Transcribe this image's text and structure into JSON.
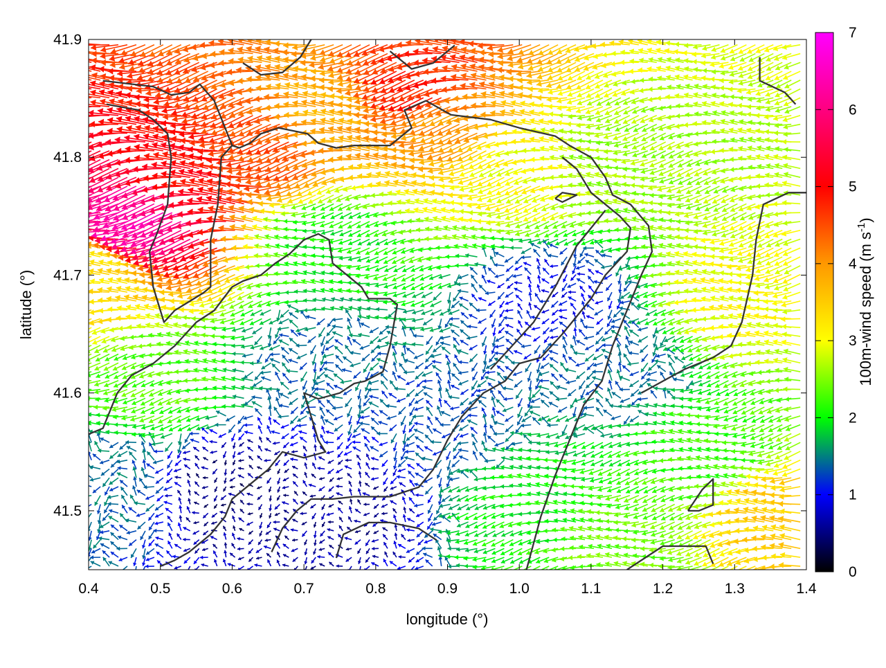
{
  "chart_data": {
    "type": "vector-field",
    "xlabel": "longitude (°)",
    "ylabel": "latitude (°)",
    "xlim": [
      0.4,
      1.4
    ],
    "ylim": [
      41.45,
      41.9
    ],
    "xticks": [
      0.4,
      0.5,
      0.6,
      0.7,
      0.8,
      0.9,
      1.0,
      1.1,
      1.2,
      1.3,
      1.4
    ],
    "yticks": [
      41.5,
      41.6,
      41.7,
      41.8,
      41.9
    ],
    "xtick_labels": [
      "0.4",
      "0.5",
      "0.6",
      "0.7",
      "0.8",
      "0.9",
      "1.0",
      "1.1",
      "1.2",
      "1.3",
      "1.4"
    ],
    "ytick_labels": [
      "41.5",
      "41.6",
      "41.7",
      "41.8",
      "41.9"
    ],
    "colorbar": {
      "label_main": "100m-wind speed (m s",
      "label_sup": "-1",
      "label_end": ")",
      "range": [
        0,
        7
      ],
      "ticks": [
        "0",
        "1",
        "2",
        "3",
        "4",
        "5",
        "6",
        "7"
      ],
      "colors": [
        "#000000",
        "#0000ff",
        "#00ff00",
        "#ffff00",
        "#ff9900",
        "#ff0000",
        "#ff00ff"
      ]
    },
    "wind_direction": "mostly westward",
    "speed_regions": [
      {
        "lon": 0.48,
        "lat": 41.75,
        "speed": 6.3
      },
      {
        "lon": 0.55,
        "lat": 41.79,
        "speed": 5.0
      },
      {
        "lon": 0.65,
        "lat": 41.81,
        "speed": 4.5
      },
      {
        "lon": 0.87,
        "lat": 41.86,
        "speed": 4.8
      },
      {
        "lon": 0.75,
        "lat": 41.84,
        "speed": 3.8
      },
      {
        "lon": 0.9,
        "lat": 41.83,
        "speed": 4.0
      },
      {
        "lon": 1.0,
        "lat": 41.79,
        "speed": 3.0
      },
      {
        "lon": 1.15,
        "lat": 41.8,
        "speed": 2.6
      },
      {
        "lon": 1.32,
        "lat": 41.68,
        "speed": 3.0
      },
      {
        "lon": 1.38,
        "lat": 41.5,
        "speed": 3.5
      },
      {
        "lon": 1.13,
        "lat": 41.47,
        "speed": 2.4
      },
      {
        "lon": 1.28,
        "lat": 41.55,
        "speed": 2.2
      },
      {
        "lon": 0.42,
        "lat": 41.7,
        "speed": 3.3
      },
      {
        "lon": 0.5,
        "lat": 41.61,
        "speed": 2.3
      },
      {
        "lon": 0.75,
        "lat": 41.73,
        "speed": 2.0
      },
      {
        "lon": 0.72,
        "lat": 41.63,
        "speed": 1.4
      },
      {
        "lon": 0.6,
        "lat": 41.52,
        "speed": 0.5
      },
      {
        "lon": 0.75,
        "lat": 41.5,
        "speed": 0.6
      },
      {
        "lon": 0.9,
        "lat": 41.58,
        "speed": 1.3
      },
      {
        "lon": 1.05,
        "lat": 41.68,
        "speed": 1.0
      },
      {
        "lon": 1.15,
        "lat": 41.62,
        "speed": 1.4
      },
      {
        "lon": 1.03,
        "lat": 41.5,
        "speed": 2.0
      },
      {
        "lon": 0.43,
        "lat": 41.52,
        "speed": 1.4
      }
    ],
    "contours": [
      [
        [
          0.42,
          41.865
        ],
        [
          0.49,
          41.86
        ],
        [
          0.515,
          41.853
        ],
        [
          0.54,
          41.855
        ],
        [
          0.555,
          41.862
        ],
        [
          0.575,
          41.848
        ],
        [
          0.6,
          41.81
        ],
        [
          0.61,
          41.808
        ],
        [
          0.625,
          41.812
        ],
        [
          0.64,
          41.82
        ],
        [
          0.665,
          41.825
        ],
        [
          0.705,
          41.82
        ],
        [
          0.72,
          41.812
        ],
        [
          0.745,
          41.808
        ],
        [
          0.77,
          41.81
        ],
        [
          0.82,
          41.81
        ],
        [
          0.85,
          41.825
        ],
        [
          0.84,
          41.84
        ],
        [
          0.87,
          41.848
        ],
        [
          0.905,
          41.836
        ],
        [
          0.96,
          41.832
        ],
        [
          1.0,
          41.825
        ],
        [
          1.05,
          41.818
        ],
        [
          1.07,
          41.81
        ],
        [
          1.1,
          41.8
        ],
        [
          1.12,
          41.783
        ],
        [
          1.13,
          41.768
        ],
        [
          1.155,
          41.76
        ],
        [
          1.18,
          41.742
        ],
        [
          1.185,
          41.72
        ],
        [
          1.17,
          41.7
        ],
        [
          1.13,
          41.64
        ],
        [
          1.115,
          41.61
        ],
        [
          1.09,
          41.59
        ],
        [
          1.07,
          41.56
        ],
        [
          1.05,
          41.53
        ],
        [
          1.03,
          41.495
        ],
        [
          1.01,
          41.45
        ]
      ],
      [
        [
          0.425,
          41.845
        ],
        [
          0.47,
          41.84
        ],
        [
          0.49,
          41.832
        ],
        [
          0.51,
          41.82
        ],
        [
          0.515,
          41.8
        ],
        [
          0.51,
          41.76
        ],
        [
          0.495,
          41.735
        ],
        [
          0.485,
          41.72
        ],
        [
          0.49,
          41.69
        ],
        [
          0.505,
          41.66
        ],
        [
          0.52,
          41.67
        ],
        [
          0.56,
          41.685
        ],
        [
          0.57,
          41.69
        ],
        [
          0.57,
          41.73
        ],
        [
          0.58,
          41.76
        ],
        [
          0.585,
          41.8
        ],
        [
          0.6,
          41.81
        ]
      ],
      [
        [
          0.4,
          41.565
        ],
        [
          0.42,
          41.57
        ],
        [
          0.44,
          41.6
        ],
        [
          0.46,
          41.615
        ],
        [
          0.49,
          41.625
        ],
        [
          0.52,
          41.64
        ],
        [
          0.55,
          41.66
        ],
        [
          0.575,
          41.67
        ],
        [
          0.6,
          41.69
        ],
        [
          0.615,
          41.695
        ],
        [
          0.64,
          41.7
        ],
        [
          0.66,
          41.71
        ],
        [
          0.68,
          41.718
        ],
        [
          0.7,
          41.73
        ],
        [
          0.72,
          41.735
        ],
        [
          0.735,
          41.73
        ],
        [
          0.74,
          41.71
        ],
        [
          0.76,
          41.7
        ],
        [
          0.78,
          41.69
        ],
        [
          0.79,
          41.68
        ],
        [
          0.82,
          41.68
        ],
        [
          0.83,
          41.675
        ],
        [
          0.82,
          41.64
        ],
        [
          0.81,
          41.618
        ],
        [
          0.785,
          41.61
        ],
        [
          0.77,
          41.608
        ],
        [
          0.75,
          41.6
        ],
        [
          0.72,
          41.595
        ],
        [
          0.7,
          41.6
        ],
        [
          0.71,
          41.58
        ],
        [
          0.72,
          41.56
        ],
        [
          0.73,
          41.55
        ],
        [
          0.7,
          41.545
        ],
        [
          0.67,
          41.55
        ],
        [
          0.65,
          41.535
        ],
        [
          0.62,
          41.52
        ],
        [
          0.6,
          41.51
        ],
        [
          0.59,
          41.495
        ],
        [
          0.57,
          41.48
        ],
        [
          0.54,
          41.465
        ],
        [
          0.52,
          41.458
        ],
        [
          0.5,
          41.453
        ]
      ],
      [
        [
          0.655,
          41.465
        ],
        [
          0.67,
          41.485
        ],
        [
          0.69,
          41.5
        ],
        [
          0.71,
          41.51
        ],
        [
          0.74,
          41.51
        ],
        [
          0.77,
          41.512
        ],
        [
          0.82,
          41.512
        ],
        [
          0.86,
          41.52
        ],
        [
          0.88,
          41.535
        ],
        [
          0.9,
          41.56
        ],
        [
          0.92,
          41.58
        ],
        [
          0.95,
          41.6
        ],
        [
          0.98,
          41.61
        ],
        [
          1.0,
          41.625
        ],
        [
          1.03,
          41.63
        ],
        [
          1.06,
          41.65
        ],
        [
          1.08,
          41.665
        ],
        [
          1.1,
          41.68
        ],
        [
          1.12,
          41.7
        ],
        [
          1.15,
          41.72
        ],
        [
          1.155,
          41.74
        ],
        [
          1.14,
          41.75
        ],
        [
          1.1,
          41.77
        ],
        [
          1.08,
          41.79
        ],
        [
          1.06,
          41.8
        ]
      ],
      [
        [
          0.745,
          41.46
        ],
        [
          0.755,
          41.48
        ],
        [
          0.79,
          41.49
        ],
        [
          0.82,
          41.49
        ],
        [
          0.86,
          41.485
        ],
        [
          0.885,
          41.475
        ]
      ],
      [
        [
          1.15,
          41.45
        ],
        [
          1.2,
          41.47
        ],
        [
          1.26,
          41.47
        ],
        [
          1.27,
          41.455
        ]
      ],
      [
        [
          1.235,
          41.5
        ],
        [
          1.255,
          41.518
        ],
        [
          1.27,
          41.527
        ],
        [
          1.27,
          41.505
        ],
        [
          1.25,
          41.5
        ],
        [
          1.235,
          41.5
        ]
      ],
      [
        [
          1.05,
          41.765
        ],
        [
          1.06,
          41.77
        ],
        [
          1.08,
          41.768
        ],
        [
          1.06,
          41.762
        ],
        [
          1.05,
          41.765
        ]
      ],
      [
        [
          1.335,
          41.885
        ],
        [
          1.335,
          41.865
        ],
        [
          1.37,
          41.855
        ],
        [
          1.385,
          41.845
        ]
      ],
      [
        [
          0.96,
          41.62
        ],
        [
          0.99,
          41.64
        ],
        [
          1.02,
          41.66
        ],
        [
          1.05,
          41.69
        ],
        [
          1.08,
          41.725
        ],
        [
          1.1,
          41.74
        ],
        [
          1.12,
          41.755
        ]
      ],
      [
        [
          1.17,
          41.6
        ],
        [
          1.2,
          41.61
        ],
        [
          1.23,
          41.62
        ],
        [
          1.27,
          41.63
        ],
        [
          1.295,
          41.64
        ],
        [
          1.31,
          41.66
        ],
        [
          1.325,
          41.7
        ],
        [
          1.33,
          41.73
        ],
        [
          1.34,
          41.76
        ],
        [
          1.375,
          41.77
        ],
        [
          1.4,
          41.77
        ]
      ],
      [
        [
          0.615,
          41.88
        ],
        [
          0.64,
          41.87
        ],
        [
          0.67,
          41.872
        ],
        [
          0.695,
          41.885
        ],
        [
          0.71,
          41.9
        ]
      ],
      [
        [
          0.82,
          41.89
        ],
        [
          0.85,
          41.875
        ],
        [
          0.88,
          41.88
        ],
        [
          0.91,
          41.895
        ]
      ]
    ]
  }
}
